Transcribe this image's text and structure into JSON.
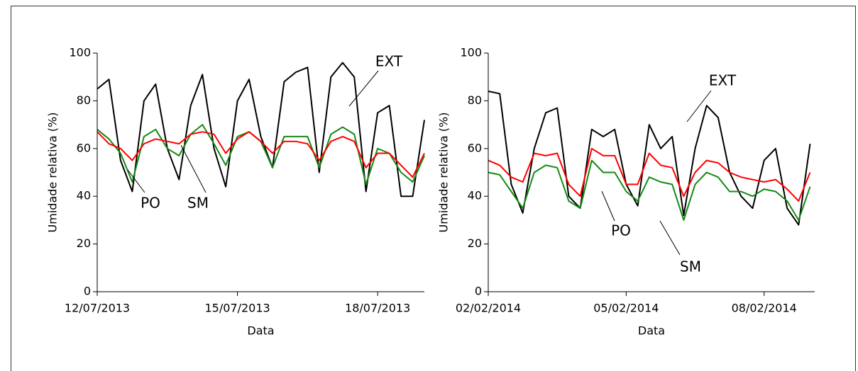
{
  "chart_data": [
    {
      "type": "line",
      "x_label": "Data",
      "y_label": "Umidade relativa (%)",
      "x": [
        0,
        0.25,
        0.5,
        0.75,
        1,
        1.25,
        1.5,
        1.75,
        2,
        2.25,
        2.5,
        2.75,
        3,
        3.25,
        3.5,
        3.75,
        4,
        4.25,
        4.5,
        4.75,
        5,
        5.25,
        5.5,
        5.75,
        6,
        6.25,
        6.5,
        6.75,
        7
      ],
      "xlim": [
        0,
        7
      ],
      "xticks": [
        {
          "value": 0,
          "label": "12/07/2013"
        },
        {
          "value": 3,
          "label": "15/07/2013"
        },
        {
          "value": 6,
          "label": "18/07/2013"
        }
      ],
      "ylim": [
        0,
        100
      ],
      "yticks": [
        0,
        20,
        40,
        60,
        80,
        100
      ],
      "series": [
        {
          "name": "EXT",
          "color": "#000000",
          "values": [
            85,
            89,
            55,
            42,
            80,
            87,
            60,
            47,
            78,
            91,
            60,
            44,
            80,
            89,
            65,
            52,
            88,
            92,
            94,
            50,
            90,
            96,
            90,
            42,
            75,
            78,
            40,
            40,
            72
          ]
        },
        {
          "name": "SM",
          "color": "#138a13",
          "values": [
            68,
            64,
            58,
            46,
            65,
            68,
            60,
            57,
            66,
            70,
            62,
            53,
            65,
            67,
            63,
            52,
            65,
            65,
            65,
            52,
            66,
            69,
            66,
            45,
            60,
            58,
            50,
            46,
            57
          ]
        },
        {
          "name": "PO",
          "color": "#ff0000",
          "values": [
            67,
            62,
            60,
            55,
            62,
            64,
            63,
            62,
            66,
            67,
            66,
            58,
            64,
            67,
            63,
            58,
            63,
            63,
            62,
            55,
            63,
            65,
            63,
            52,
            58,
            58,
            53,
            48,
            58
          ]
        }
      ]
    },
    {
      "type": "line",
      "x_label": "Data",
      "y_label": "Umidade relativa (%)",
      "x": [
        0,
        0.25,
        0.5,
        0.75,
        1,
        1.25,
        1.5,
        1.75,
        2,
        2.25,
        2.5,
        2.75,
        3,
        3.25,
        3.5,
        3.75,
        4,
        4.25,
        4.5,
        4.75,
        5,
        5.25,
        5.5,
        5.75,
        6,
        6.25,
        6.5,
        6.75,
        7
      ],
      "xlim": [
        0,
        7.1
      ],
      "xticks": [
        {
          "value": 0,
          "label": "02/02/2014"
        },
        {
          "value": 3,
          "label": "05/02/2014"
        },
        {
          "value": 6,
          "label": "08/02/2014"
        }
      ],
      "ylim": [
        0,
        100
      ],
      "yticks": [
        0,
        20,
        40,
        60,
        80,
        100
      ],
      "series": [
        {
          "name": "EXT",
          "color": "#000000",
          "values": [
            84,
            83,
            45,
            33,
            60,
            75,
            77,
            40,
            35,
            68,
            65,
            68,
            45,
            36,
            70,
            60,
            65,
            32,
            60,
            78,
            73,
            50,
            40,
            35,
            55,
            60,
            35,
            28,
            62
          ]
        },
        {
          "name": "SM",
          "color": "#138a13",
          "values": [
            50,
            49,
            42,
            35,
            50,
            53,
            52,
            38,
            35,
            55,
            50,
            50,
            42,
            38,
            48,
            46,
            45,
            30,
            45,
            50,
            48,
            42,
            42,
            40,
            43,
            42,
            38,
            30,
            44
          ]
        },
        {
          "name": "PO",
          "color": "#ff0000",
          "values": [
            55,
            53,
            48,
            46,
            58,
            57,
            58,
            45,
            40,
            60,
            57,
            57,
            45,
            45,
            58,
            53,
            52,
            40,
            50,
            55,
            54,
            50,
            48,
            47,
            46,
            47,
            43,
            38,
            50
          ]
        }
      ]
    }
  ]
}
